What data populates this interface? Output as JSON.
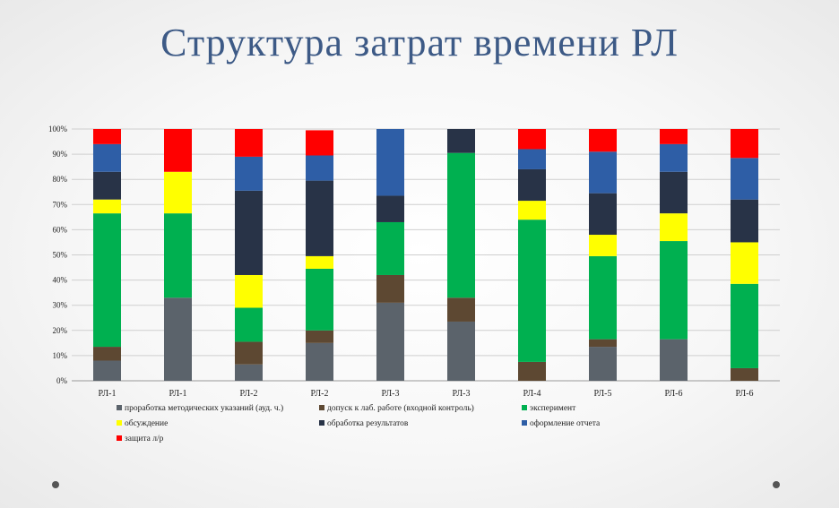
{
  "slide": {
    "title": "Структура затрат времени РЛ"
  },
  "chart_data": {
    "type": "bar",
    "stacked": "percent",
    "categories": [
      "РЛ-1",
      "РЛ-1",
      "РЛ-2",
      "РЛ-2",
      "РЛ-3",
      "РЛ-3",
      "РЛ-4",
      "РЛ-5",
      "РЛ-6",
      "РЛ-6"
    ],
    "yticks": [
      "0%",
      "10%",
      "20%",
      "30%",
      "40%",
      "50%",
      "60%",
      "70%",
      "80%",
      "90%",
      "100%"
    ],
    "ylim": [
      0,
      100
    ],
    "grid": true,
    "legend_position": "bottom",
    "series": [
      {
        "name": "проработка методических указаний  (ауд. ч.)",
        "color": "#5b636b",
        "values": [
          8,
          33,
          6.5,
          15,
          31,
          23.5,
          0,
          13.5,
          16.5,
          0
        ]
      },
      {
        "name": "допуск к лаб. работе (входной контроль)",
        "color": "#5d4832",
        "values": [
          5.5,
          0,
          9,
          5,
          11,
          9.5,
          7.5,
          3,
          0,
          5
        ]
      },
      {
        "name": "эксперимент",
        "color": "#00b050",
        "values": [
          53,
          33.5,
          13.5,
          24.5,
          21,
          57.5,
          56.5,
          33,
          39,
          33.5
        ]
      },
      {
        "name": "обсуждение",
        "color": "#ffff00",
        "values": [
          5.5,
          16.5,
          13,
          5,
          0,
          0,
          7.5,
          8.5,
          11,
          16.5
        ]
      },
      {
        "name": "обработка результатов",
        "color": "#283347",
        "values": [
          11,
          0,
          33.5,
          30,
          10.5,
          9.5,
          12.5,
          16.5,
          16.5,
          17
        ]
      },
      {
        "name": "оформление отчета",
        "color": "#2e5ea6",
        "values": [
          11,
          0,
          13.5,
          10,
          26.5,
          0,
          8,
          16.5,
          11,
          16.5
        ]
      },
      {
        "name": "защита л/р",
        "color": "#ff0000",
        "values": [
          6,
          17,
          11,
          10,
          0,
          0,
          8,
          9,
          6,
          11.5
        ]
      }
    ]
  }
}
